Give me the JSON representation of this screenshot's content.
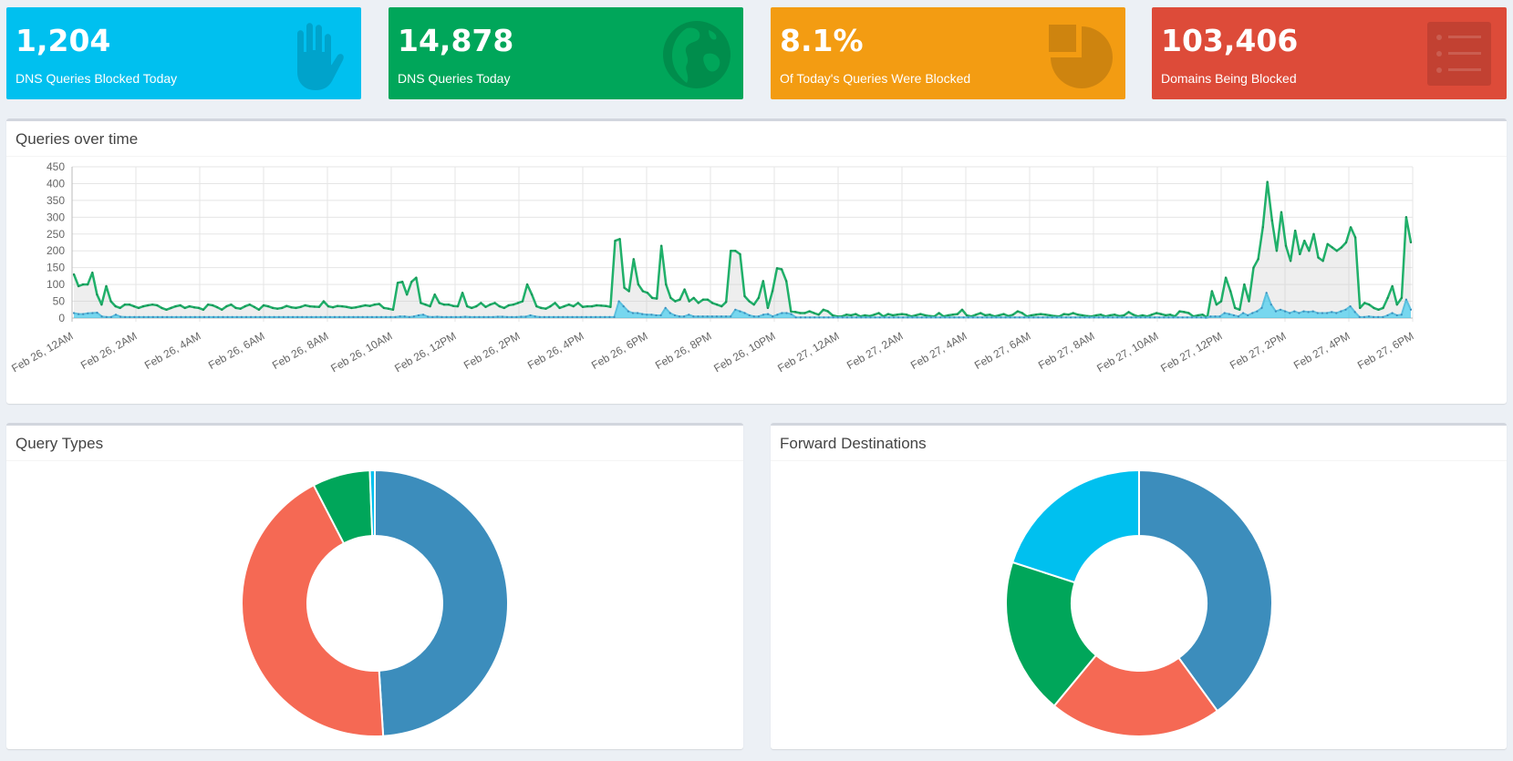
{
  "stats": [
    {
      "value": "1,204",
      "label": "DNS Queries Blocked Today",
      "color": "#00c0ef",
      "icon": "hand-icon"
    },
    {
      "value": "14,878",
      "label": "DNS Queries Today",
      "color": "#00a65a",
      "icon": "globe-icon"
    },
    {
      "value": "8.1%",
      "label": "Of Today's Queries Were Blocked",
      "color": "#f39c12",
      "icon": "pie-chart-icon"
    },
    {
      "value": "103,406",
      "label": "Domains Being Blocked",
      "color": "#dd4b39",
      "icon": "list-icon"
    }
  ],
  "queries_panel": {
    "title": "Queries over time"
  },
  "query_types_panel": {
    "title": "Query Types"
  },
  "forward_panel": {
    "title": "Forward Destinations"
  },
  "chart_data": [
    {
      "type": "area",
      "title": "Queries over time",
      "ylim": [
        0,
        450
      ],
      "yticks": [
        0,
        50,
        100,
        150,
        200,
        250,
        300,
        350,
        400,
        450
      ],
      "grid": true,
      "x_start_label": "Feb 26, 12AM",
      "x_end_label": "Feb 27, 6PM",
      "x_tick_labels": [
        "Feb 26, 12AM",
        "Feb 26, 2AM",
        "Feb 26, 4AM",
        "Feb 26, 6AM",
        "Feb 26, 8AM",
        "Feb 26, 10AM",
        "Feb 26, 12PM",
        "Feb 26, 2PM",
        "Feb 26, 4PM",
        "Feb 26, 6PM",
        "Feb 26, 8PM",
        "Feb 26, 10PM",
        "Feb 27, 12AM",
        "Feb 27, 2AM",
        "Feb 27, 4AM",
        "Feb 27, 6AM",
        "Feb 27, 8AM",
        "Feb 27, 10AM",
        "Feb 27, 12PM",
        "Feb 27, 2PM",
        "Feb 27, 4PM",
        "Feb 27, 6PM"
      ],
      "series": [
        {
          "color": "#00a65a",
          "fill": "rgba(200,200,200,0.3)",
          "values": [
            130,
            95,
            100,
            100,
            135,
            70,
            40,
            95,
            50,
            35,
            30,
            40,
            40,
            35,
            30,
            35,
            38,
            40,
            38,
            30,
            25,
            30,
            35,
            38,
            30,
            35,
            32,
            30,
            25,
            40,
            38,
            32,
            25,
            35,
            40,
            30,
            28,
            35,
            40,
            33,
            25,
            38,
            35,
            30,
            28,
            30,
            36,
            32,
            30,
            33,
            38,
            35,
            34,
            33,
            50,
            35,
            32,
            36,
            35,
            33,
            30,
            32,
            35,
            38,
            36,
            40,
            42,
            30,
            28,
            25,
            105,
            108,
            70,
            108,
            120,
            45,
            40,
            35,
            70,
            45,
            40,
            40,
            36,
            35,
            75,
            35,
            30,
            35,
            45,
            33,
            40,
            45,
            35,
            30,
            38,
            40,
            45,
            50,
            100,
            70,
            35,
            30,
            28,
            35,
            45,
            30,
            35,
            40,
            35,
            45,
            33,
            35,
            35,
            38,
            37,
            36,
            33,
            230,
            235,
            90,
            80,
            175,
            100,
            80,
            75,
            60,
            58,
            215,
            100,
            60,
            50,
            55,
            85,
            50,
            60,
            45,
            55,
            55,
            45,
            40,
            35,
            48,
            200,
            200,
            190,
            65,
            50,
            40,
            60,
            110,
            30,
            80,
            148,
            145,
            110,
            20,
            18,
            15,
            15,
            20,
            15,
            10,
            25,
            20,
            8,
            5,
            5,
            10,
            8,
            12,
            5,
            8,
            6,
            10,
            15,
            5,
            12,
            8,
            10,
            12,
            10,
            5,
            8,
            12,
            8,
            6,
            5,
            15,
            5,
            8,
            10,
            12,
            25,
            8,
            5,
            10,
            15,
            8,
            10,
            5,
            8,
            12,
            6,
            10,
            20,
            15,
            5,
            8,
            10,
            12,
            10,
            8,
            6,
            5,
            12,
            10,
            15,
            10,
            8,
            6,
            5,
            8,
            10,
            5,
            8,
            10,
            6,
            8,
            18,
            10,
            5,
            8,
            5,
            10,
            15,
            12,
            8,
            10,
            5,
            20,
            18,
            15,
            5,
            8,
            10,
            2,
            80,
            40,
            50,
            120,
            80,
            30,
            25,
            100,
            50,
            150,
            175,
            270,
            405,
            290,
            200,
            315,
            215,
            170,
            260,
            190,
            230,
            200,
            250,
            180,
            170,
            220,
            210,
            200,
            210,
            225,
            270,
            240,
            30,
            45,
            40,
            30,
            25,
            30,
            60,
            95,
            40,
            60,
            300,
            225
          ]
        },
        {
          "color": "#3c8dbc",
          "fill": "rgba(0,192,239,0.5)",
          "values": [
            15,
            12,
            12,
            14,
            15,
            16,
            5,
            3,
            3,
            10,
            4,
            3,
            3,
            3,
            3,
            3,
            3,
            3,
            3,
            3,
            3,
            3,
            3,
            3,
            3,
            3,
            3,
            3,
            3,
            3,
            3,
            3,
            3,
            3,
            3,
            3,
            3,
            3,
            3,
            3,
            3,
            3,
            3,
            3,
            3,
            3,
            3,
            3,
            3,
            3,
            3,
            3,
            3,
            3,
            3,
            3,
            3,
            3,
            3,
            3,
            3,
            3,
            3,
            3,
            3,
            3,
            3,
            3,
            3,
            3,
            5,
            5,
            3,
            5,
            8,
            10,
            4,
            3,
            4,
            3,
            3,
            3,
            3,
            3,
            4,
            3,
            3,
            3,
            3,
            3,
            3,
            4,
            4,
            3,
            3,
            3,
            4,
            4,
            8,
            5,
            3,
            3,
            3,
            3,
            3,
            3,
            3,
            3,
            3,
            3,
            3,
            3,
            3,
            3,
            3,
            3,
            3,
            50,
            35,
            20,
            15,
            15,
            12,
            10,
            10,
            8,
            8,
            30,
            15,
            8,
            5,
            5,
            10,
            5,
            5,
            5,
            5,
            5,
            5,
            5,
            5,
            5,
            25,
            20,
            15,
            8,
            5,
            5,
            10,
            12,
            5,
            10,
            15,
            15,
            12,
            2,
            2,
            2,
            2,
            2,
            2,
            2,
            2,
            2,
            2,
            2,
            2,
            2,
            2,
            2,
            2,
            2,
            2,
            2,
            2,
            2,
            2,
            2,
            2,
            2,
            2,
            2,
            2,
            2,
            2,
            2,
            2,
            2,
            2,
            2,
            2,
            2,
            2,
            2,
            2,
            2,
            2,
            2,
            2,
            2,
            2,
            2,
            2,
            2,
            2,
            2,
            2,
            2,
            2,
            2,
            2,
            2,
            2,
            2,
            2,
            2,
            2,
            2,
            2,
            2,
            2,
            2,
            2,
            2,
            2,
            2,
            2,
            2,
            2,
            2,
            2,
            2,
            2,
            2,
            2,
            2,
            2,
            2,
            2,
            2,
            2,
            2,
            2,
            1,
            5,
            5,
            5,
            15,
            12,
            8,
            5,
            15,
            8,
            15,
            20,
            30,
            75,
            40,
            20,
            25,
            20,
            15,
            20,
            15,
            20,
            18,
            20,
            15,
            15,
            15,
            18,
            15,
            20,
            25,
            35,
            18,
            3,
            3,
            5,
            3,
            3,
            3,
            8,
            15,
            8,
            10,
            55,
            25
          ]
        }
      ]
    },
    {
      "type": "pie",
      "title": "Query Types",
      "slices": [
        {
          "value": 49,
          "color": "#3c8dbc"
        },
        {
          "value": 43.4,
          "color": "#f56954"
        },
        {
          "value": 7,
          "color": "#00a65a"
        },
        {
          "value": 0.6,
          "color": "#00c0ef"
        }
      ]
    },
    {
      "type": "pie",
      "title": "Forward Destinations",
      "slices": [
        {
          "value": 40,
          "color": "#3c8dbc"
        },
        {
          "value": 21,
          "color": "#f56954"
        },
        {
          "value": 19,
          "color": "#00a65a"
        },
        {
          "value": 20,
          "color": "#00c0ef"
        }
      ]
    }
  ]
}
